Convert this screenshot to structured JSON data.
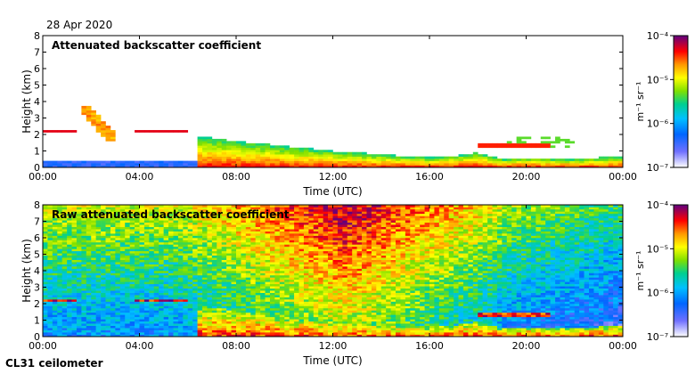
{
  "header": {
    "date": "28 Apr 2020"
  },
  "footer": {
    "instrument": "CL31 ceilometer"
  },
  "chart_data": [
    {
      "type": "heatmap",
      "title": "Attenuated backscatter coefficient",
      "xlabel": "Time (UTC)",
      "ylabel": "Height (km)",
      "xticks": [
        "00:00",
        "04:00",
        "08:00",
        "12:00",
        "16:00",
        "20:00",
        "00:00"
      ],
      "yticks": [
        "0",
        "1",
        "2",
        "3",
        "4",
        "5",
        "6",
        "7",
        "8"
      ],
      "xlim_hours": [
        0,
        24
      ],
      "ylim_km": [
        0,
        8
      ],
      "colorbar": {
        "label": "m⁻¹ sr⁻¹",
        "ticks": [
          "10⁻⁷",
          "10⁻⁶",
          "10⁻⁵",
          "10⁻⁴"
        ],
        "range_log10": [
          -7,
          -4
        ]
      },
      "cloud_layer_km": 2.2,
      "boundary_layer": {
        "hours": [
          6.5,
          8,
          10,
          12,
          14,
          16,
          17,
          18,
          19,
          20,
          22,
          24
        ],
        "top_km": [
          1.9,
          1.6,
          1.3,
          1.0,
          0.8,
          0.6,
          0.7,
          0.9,
          0.5,
          0.6,
          0.5,
          0.7
        ]
      }
    },
    {
      "type": "heatmap",
      "title": "Raw attenuated backscatter coefficient",
      "xlabel": "Time (UTC)",
      "ylabel": "Height (km)",
      "xticks": [
        "00:00",
        "04:00",
        "08:00",
        "12:00",
        "16:00",
        "20:00",
        "00:00"
      ],
      "yticks": [
        "0",
        "1",
        "2",
        "3",
        "4",
        "5",
        "6",
        "7",
        "8"
      ],
      "xlim_hours": [
        0,
        24
      ],
      "ylim_km": [
        0,
        8
      ],
      "colorbar": {
        "label": "m⁻¹ sr⁻¹",
        "ticks": [
          "10⁻⁷",
          "10⁻⁶",
          "10⁻⁵",
          "10⁻⁴"
        ],
        "range_log10": [
          -7,
          -4
        ]
      }
    }
  ]
}
